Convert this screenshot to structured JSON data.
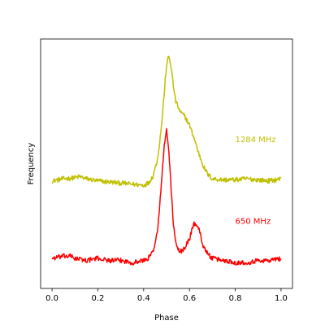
{
  "chart_data": {
    "type": "line",
    "xlabel": "Phase",
    "ylabel": "Frequency",
    "xlim": [
      -0.05,
      1.05
    ],
    "ylim": [
      -0.08,
      1.08
    ],
    "x_ticks": [
      0.0,
      0.2,
      0.4,
      0.6,
      0.8,
      1.0
    ],
    "x_tick_labels": [
      "0.0",
      "0.2",
      "0.4",
      "0.6",
      "0.8",
      "1.0"
    ],
    "y_ticks_visible": false,
    "grid": false,
    "series": [
      {
        "name": "1284 MHz",
        "color": "#bfbf00",
        "label_position": [
          0.8,
          0.6
        ],
        "x": [
          0.0,
          0.05,
          0.1,
          0.12,
          0.15,
          0.2,
          0.25,
          0.3,
          0.35,
          0.4,
          0.42,
          0.44,
          0.46,
          0.47,
          0.48,
          0.49,
          0.5,
          0.51,
          0.52,
          0.53,
          0.54,
          0.56,
          0.58,
          0.6,
          0.62,
          0.64,
          0.66,
          0.68,
          0.7,
          0.75,
          0.8,
          0.85,
          0.9,
          0.95,
          1.0
        ],
        "y": [
          0.42,
          0.43,
          0.435,
          0.44,
          0.43,
          0.42,
          0.415,
          0.41,
          0.405,
          0.4,
          0.41,
          0.44,
          0.52,
          0.6,
          0.7,
          0.83,
          0.96,
          1.0,
          0.95,
          0.86,
          0.79,
          0.74,
          0.72,
          0.68,
          0.62,
          0.55,
          0.49,
          0.45,
          0.43,
          0.425,
          0.425,
          0.43,
          0.425,
          0.42,
          0.43
        ]
      },
      {
        "name": "650 MHz",
        "color": "#ff0000",
        "label_position": [
          0.8,
          0.22
        ],
        "x": [
          0.0,
          0.05,
          0.08,
          0.1,
          0.15,
          0.2,
          0.25,
          0.3,
          0.35,
          0.4,
          0.42,
          0.44,
          0.46,
          0.47,
          0.48,
          0.49,
          0.5,
          0.51,
          0.52,
          0.53,
          0.54,
          0.55,
          0.56,
          0.58,
          0.6,
          0.61,
          0.62,
          0.63,
          0.64,
          0.65,
          0.66,
          0.68,
          0.7,
          0.75,
          0.8,
          0.85,
          0.9,
          0.95,
          1.0
        ],
        "y": [
          0.06,
          0.07,
          0.07,
          0.06,
          0.05,
          0.06,
          0.05,
          0.05,
          0.04,
          0.05,
          0.06,
          0.09,
          0.18,
          0.3,
          0.45,
          0.58,
          0.66,
          0.56,
          0.38,
          0.22,
          0.13,
          0.1,
          0.09,
          0.11,
          0.15,
          0.19,
          0.22,
          0.22,
          0.2,
          0.16,
          0.12,
          0.08,
          0.06,
          0.05,
          0.04,
          0.04,
          0.05,
          0.05,
          0.06
        ]
      }
    ]
  }
}
